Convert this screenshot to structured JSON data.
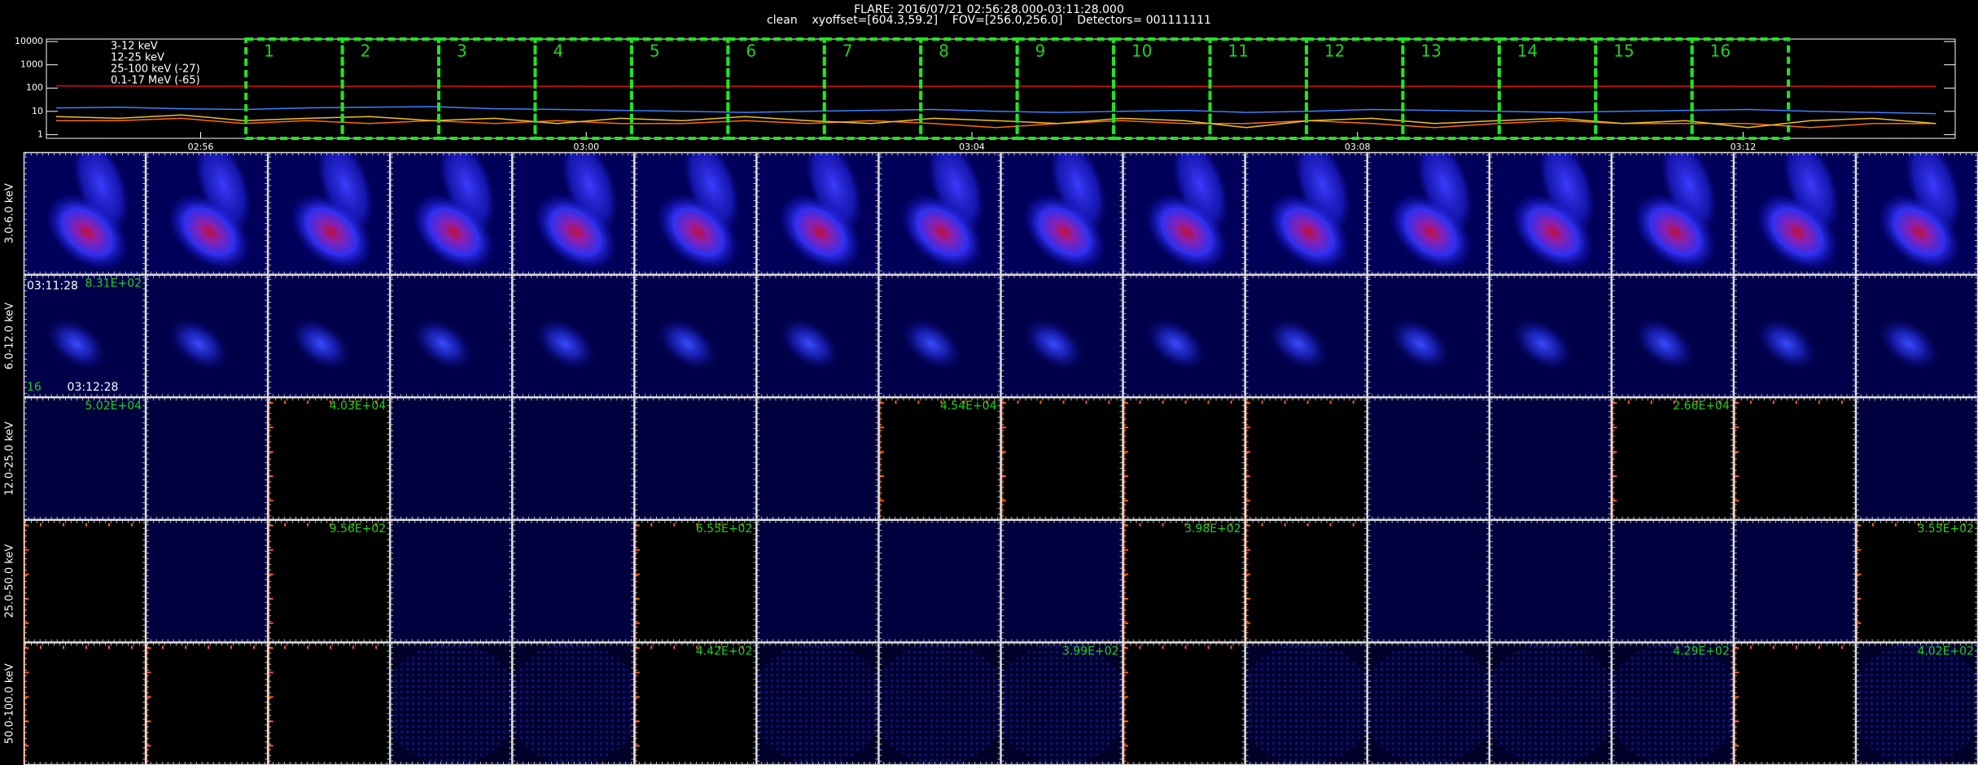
{
  "header": {
    "title": "FLARE: 2016/07/21 02:56:28.000-03:11:28.000",
    "subtitle": "clean    xyoffset=[604.3,59.2]    FOV=[256.0,256.0]    Detectors= 001111111"
  },
  "chart_data": {
    "type": "line",
    "log_y": true,
    "x": [
      174.5,
      175.15,
      175.8,
      176.45,
      177.1,
      177.75,
      178.4,
      179.05,
      179.7,
      180.35,
      181.0,
      181.65,
      182.3,
      182.95,
      183.6,
      184.25,
      184.9,
      185.55,
      186.2,
      186.85,
      187.5,
      188.15,
      188.8,
      189.45,
      190.1,
      190.75,
      191.4,
      192.05,
      192.7,
      193.35,
      194.0
    ],
    "xlim": [
      174.4,
      194.2
    ],
    "xticks": [
      {
        "value": 176,
        "label": "02:56"
      },
      {
        "value": 180,
        "label": "03:00"
      },
      {
        "value": 184,
        "label": "03:04"
      },
      {
        "value": 188,
        "label": "03:08"
      },
      {
        "value": 192,
        "label": "03:12"
      }
    ],
    "ylim": [
      0.69,
      12800
    ],
    "yticks": [
      1,
      10,
      100,
      1000,
      10000
    ],
    "series": [
      {
        "name": "3-12 keV",
        "color": "#e01010",
        "values": [
          125,
          122,
          120,
          121,
          119,
          120,
          122,
          118,
          120,
          119,
          121,
          120,
          118,
          120,
          119,
          121,
          120,
          119,
          118,
          120,
          121,
          119,
          120,
          118,
          119,
          120,
          121,
          119,
          120,
          118,
          119
        ]
      },
      {
        "name": "12-25 keV",
        "color": "#ff6a10",
        "values": [
          4,
          4,
          5,
          3,
          4,
          3,
          4,
          3,
          4,
          3,
          3,
          4,
          3,
          4,
          3,
          2,
          3,
          4,
          3,
          3,
          4,
          3,
          2,
          3,
          4,
          3,
          3,
          3,
          2,
          3,
          3
        ]
      },
      {
        "name": "25-100 keV (-27)",
        "color": "#f0c020",
        "values": [
          6,
          5,
          7,
          4,
          5,
          6,
          4,
          5,
          3,
          5,
          4,
          6,
          4,
          3,
          5,
          4,
          3,
          5,
          4,
          2,
          4,
          5,
          3,
          4,
          5,
          3,
          4,
          2,
          4,
          5,
          3
        ]
      },
      {
        "name": "0.1-17 MeV (-65)",
        "color": "#3a80ff",
        "values": [
          14,
          15,
          13,
          12,
          14,
          15,
          16,
          13,
          12,
          11,
          10,
          9,
          10,
          11,
          12,
          10,
          9,
          10,
          11,
          9,
          10,
          12,
          11,
          10,
          9,
          10,
          11,
          12,
          10,
          9,
          8
        ]
      }
    ],
    "intervals": {
      "labels": [
        "1",
        "2",
        "3",
        "4",
        "5",
        "6",
        "7",
        "8",
        "9",
        "10",
        "11",
        "12",
        "13",
        "14",
        "15",
        "16"
      ],
      "starts": [
        176.47,
        177.47,
        178.47,
        179.47,
        180.47,
        181.47,
        182.47,
        183.47,
        184.47,
        185.47,
        186.47,
        187.47,
        188.47,
        189.47,
        190.47,
        191.47
      ],
      "ends": [
        177.47,
        178.47,
        179.47,
        180.47,
        181.47,
        182.47,
        183.47,
        184.47,
        185.47,
        186.47,
        187.47,
        188.47,
        189.47,
        190.47,
        191.47,
        192.47
      ],
      "color": "#1ee61e"
    }
  },
  "image_grid": {
    "annotation": {
      "time_start": "03:11:28",
      "time_end": "03:12:28",
      "frame": "16"
    },
    "rows": [
      {
        "label": "3.0-6.0 keV",
        "panels": [
          "source",
          "source",
          "source",
          "source",
          "source",
          "source",
          "source",
          "source",
          "source",
          "source",
          "source",
          "source",
          "source",
          "source",
          "source",
          "source"
        ],
        "peaks": [
          null,
          null,
          null,
          null,
          null,
          null,
          null,
          null,
          null,
          null,
          null,
          null,
          null,
          null,
          null,
          null
        ]
      },
      {
        "label": "6.0-12.0 keV",
        "panels": [
          "faint",
          "faint",
          "faint",
          "faint",
          "faint",
          "faint",
          "faint",
          "faint",
          "faint",
          "faint",
          "faint",
          "faint",
          "faint",
          "faint",
          "faint",
          "faint"
        ],
        "peaks": [
          "8.31E+02",
          null,
          null,
          null,
          null,
          null,
          null,
          null,
          null,
          null,
          null,
          null,
          null,
          null,
          null,
          null
        ]
      },
      {
        "label": "12.0-25.0 keV",
        "panels": [
          "empty",
          "empty",
          "blank",
          "empty",
          "empty",
          "empty",
          "empty",
          "blank",
          "blank",
          "blank",
          "blank",
          "empty",
          "empty",
          "blank",
          "blank",
          "empty"
        ],
        "peaks": [
          "5.02E+04",
          null,
          "4.03E+04",
          null,
          null,
          null,
          null,
          "4.54E+04",
          null,
          null,
          null,
          null,
          null,
          "2.66E+04",
          null,
          null
        ]
      },
      {
        "label": "25.0-50.0 keV",
        "panels": [
          "blank",
          "empty",
          "blank",
          "empty",
          "empty",
          "blank",
          "empty",
          "empty",
          "empty",
          "blank",
          "blank",
          "empty",
          "empty",
          "empty",
          "empty",
          "blank"
        ],
        "peaks": [
          null,
          null,
          "9.56E+02",
          null,
          null,
          "6.55E+02",
          null,
          null,
          null,
          "3.98E+02",
          null,
          null,
          null,
          null,
          null,
          "3.55E+02"
        ]
      },
      {
        "label": "50.0-100.0 keV",
        "panels": [
          "blank",
          "blank",
          "blank",
          "noise",
          "noise",
          "blank",
          "noise",
          "noise",
          "noise",
          "blank",
          "noise",
          "noise",
          "noise",
          "noise",
          "blank",
          "noise"
        ],
        "peaks": [
          null,
          null,
          null,
          null,
          null,
          "4.42E+02",
          null,
          null,
          "3.99E+02",
          null,
          null,
          null,
          null,
          "4.29E+02",
          null,
          "4.02E+02"
        ]
      }
    ]
  }
}
